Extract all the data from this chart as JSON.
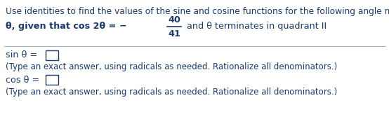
{
  "title_text": "Use identities to find the values of the sine and cosine functions for the following angle measure.",
  "prefix_text": "θ, given that cos 2θ = −",
  "numerator": "40",
  "denominator": "41",
  "suffix_text": " and θ terminates in quadrant II",
  "sin_label": "sin θ = ",
  "cos_label": "cos θ = ",
  "note": "(Type an exact answer, using radicals as needed. Rationalize all denominators.)",
  "text_color": "#1b3a6b",
  "bg_color": "#ffffff",
  "line_color": "#a0b0c0",
  "box_color": "#1b3a6b",
  "title_fontsize": 8.8,
  "body_fontsize": 9.2,
  "note_fontsize": 8.5
}
